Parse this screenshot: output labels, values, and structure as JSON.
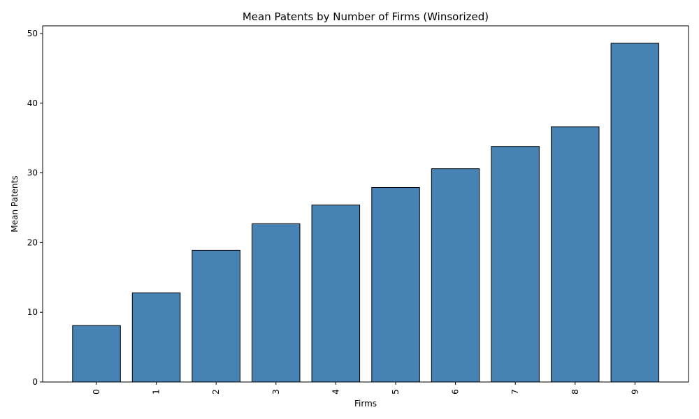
{
  "chart_data": {
    "type": "bar",
    "title": "Mean Patents by Number of Firms (Winsorized)",
    "xlabel": "Firms",
    "ylabel": "Mean Patents",
    "categories": [
      "0",
      "1",
      "2",
      "3",
      "4",
      "5",
      "6",
      "7",
      "8",
      "9"
    ],
    "values": [
      8.1,
      12.8,
      18.9,
      22.7,
      25.4,
      27.9,
      30.6,
      33.8,
      36.6,
      48.6
    ],
    "ylim": [
      0,
      51.1
    ],
    "yticks": [
      0,
      10,
      20,
      30,
      40,
      50
    ],
    "bar_color": "#4682b4",
    "edge_color": "#000000",
    "grid": false,
    "legend": "none"
  }
}
